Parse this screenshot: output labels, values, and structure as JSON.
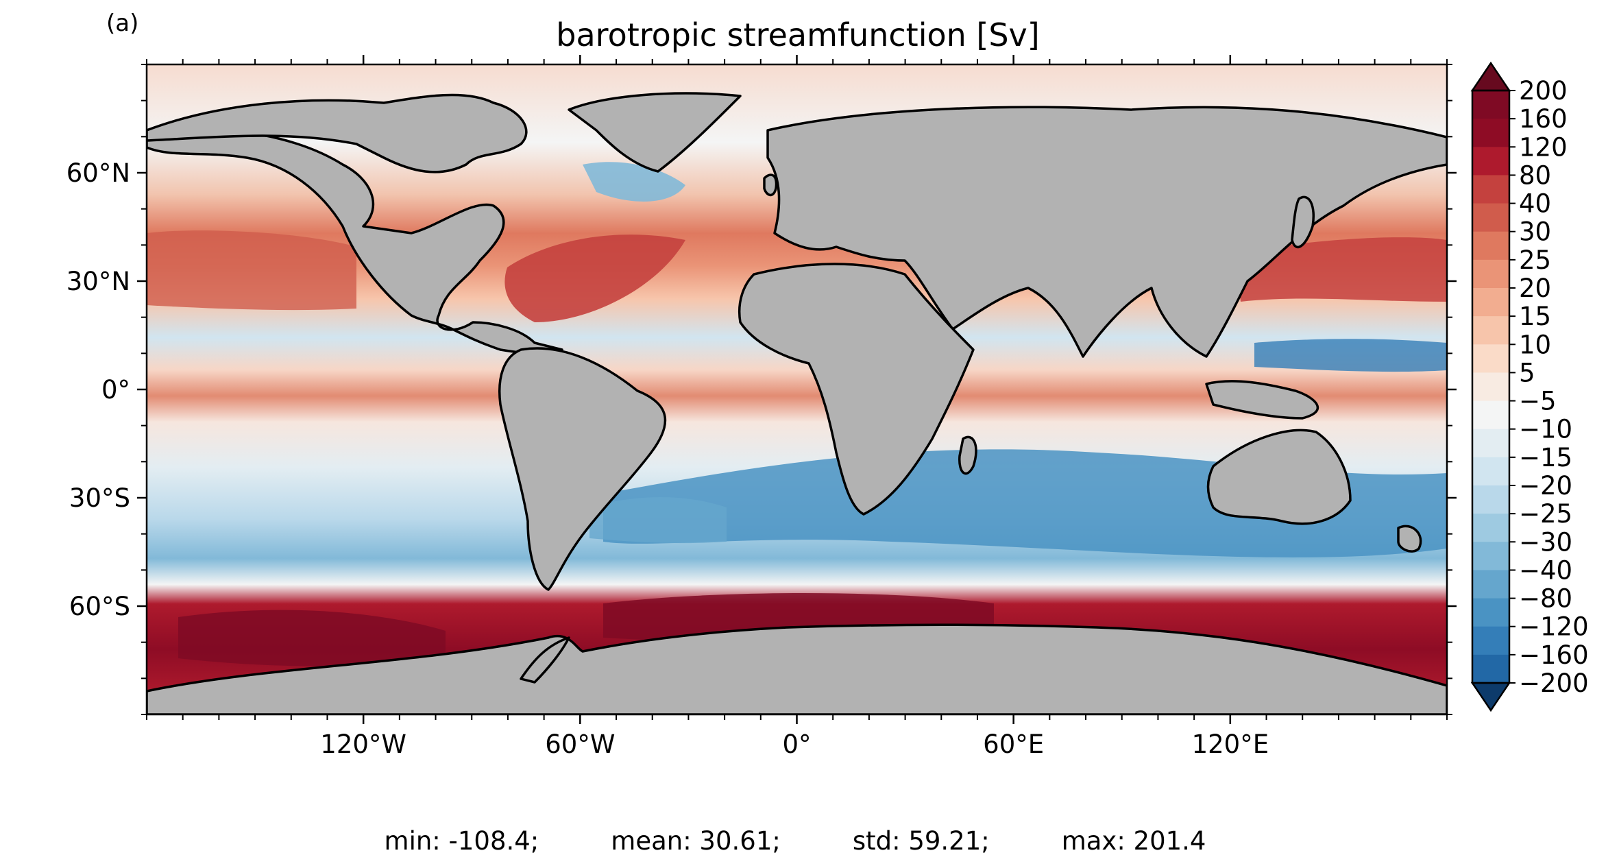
{
  "panel_label": "(a)",
  "title": "barotropic streamfunction [Sv]",
  "stats": {
    "min": "min: -108.4;",
    "mean": "mean: 30.61;",
    "std": "std: 59.21;",
    "max": "max: 201.4"
  },
  "map": {
    "projection": "PlateCarree",
    "lon_range": [
      -180,
      180
    ],
    "lat_range": [
      -90,
      90
    ],
    "land_color": "#b2b2b2",
    "coastline_color": "#000000"
  },
  "axes": {
    "lon_ticks": [
      {
        "value": -120,
        "label": "120°W"
      },
      {
        "value": -60,
        "label": "60°W"
      },
      {
        "value": 0,
        "label": "0°"
      },
      {
        "value": 60,
        "label": "60°E"
      },
      {
        "value": 120,
        "label": "120°E"
      }
    ],
    "lat_ticks": [
      {
        "value": 60,
        "label": "60°N"
      },
      {
        "value": 30,
        "label": "30°N"
      },
      {
        "value": 0,
        "label": "0°"
      },
      {
        "value": -30,
        "label": "30°S"
      },
      {
        "value": -60,
        "label": "60°S"
      }
    ]
  },
  "colorbar": {
    "extend": "both",
    "levels": [
      {
        "label": "200",
        "color": "#7f0a24"
      },
      {
        "label": "160",
        "color": "#8e0c25"
      },
      {
        "label": "120",
        "color": "#ae1a2d"
      },
      {
        "label": "80",
        "color": "#c4413e"
      },
      {
        "label": "40",
        "color": "#d05c4c"
      },
      {
        "label": "30",
        "color": "#df795f"
      },
      {
        "label": "25",
        "color": "#ea9477"
      },
      {
        "label": "20",
        "color": "#f2ad90"
      },
      {
        "label": "15",
        "color": "#f7c5ab"
      },
      {
        "label": "10",
        "color": "#fadbc8"
      },
      {
        "label": "5",
        "color": "#f8ebe2"
      },
      {
        "label": "−5",
        "color": "#f4f5f5"
      },
      {
        "label": "−10",
        "color": "#e3edf2"
      },
      {
        "label": "−15",
        "color": "#d1e5f0"
      },
      {
        "label": "−20",
        "color": "#b9d8ea"
      },
      {
        "label": "−25",
        "color": "#9ecae1"
      },
      {
        "label": "−30",
        "color": "#82b9d8"
      },
      {
        "label": "−40",
        "color": "#65a6cd"
      },
      {
        "label": "−80",
        "color": "#4a93c3"
      },
      {
        "label": "−120",
        "color": "#347eb8"
      },
      {
        "label": "−160",
        "color": "#2268a6"
      },
      {
        "label": "−200",
        "color": "#124f8c"
      }
    ],
    "over_color": "#670a1f",
    "under_color": "#0d3b6b"
  }
}
